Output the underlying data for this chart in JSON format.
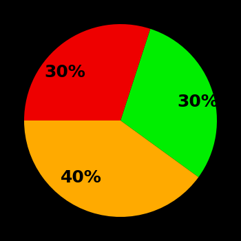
{
  "slices": [
    30,
    40,
    30
  ],
  "colors": [
    "#00ee00",
    "#ffaa00",
    "#ee0000"
  ],
  "labels": [
    "30%",
    "40%",
    "30%"
  ],
  "label_color": "#000000",
  "background_color": "#000000",
  "startangle": 72,
  "label_fontsize": 18,
  "label_fontweight": "bold",
  "label_distance": 0.62
}
